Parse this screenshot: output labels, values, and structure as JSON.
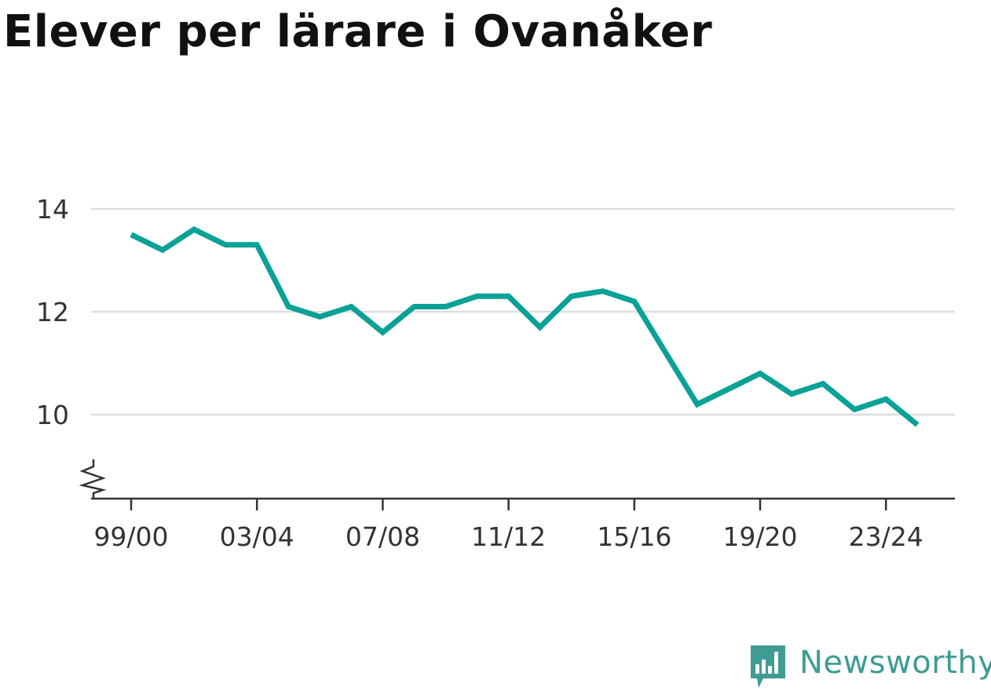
{
  "chart_data": {
    "type": "line",
    "title": "Elever per lärare i Ovanåker",
    "xlabel": "",
    "ylabel": "",
    "x": [
      "99/00",
      "00/01",
      "01/02",
      "02/03",
      "03/04",
      "04/05",
      "05/06",
      "06/07",
      "07/08",
      "08/09",
      "09/10",
      "10/11",
      "11/12",
      "12/13",
      "13/14",
      "14/15",
      "15/16",
      "16/17",
      "17/18",
      "18/19",
      "19/20",
      "20/21",
      "21/22",
      "22/23",
      "23/24",
      "24/25"
    ],
    "x_tick_labels": [
      "99/00",
      "03/04",
      "07/08",
      "11/12",
      "15/16",
      "19/20",
      "23/24"
    ],
    "series": [
      {
        "values": [
          13.5,
          13.2,
          13.6,
          13.3,
          13.3,
          12.1,
          11.9,
          12.1,
          11.6,
          12.1,
          12.1,
          12.3,
          12.3,
          11.7,
          12.3,
          12.4,
          12.2,
          11.2,
          10.2,
          10.5,
          10.8,
          10.4,
          10.6,
          10.1,
          10.3,
          9.8
        ]
      }
    ],
    "y_ticks": [
      10,
      12,
      14
    ],
    "y_tick_labels": [
      "10",
      "12",
      "14"
    ],
    "ylim": [
      8.35,
      14
    ],
    "y_axis_break": true,
    "grid": true,
    "legend": "none",
    "colors": {
      "line": "#0aa197",
      "grid": "#dddddd",
      "axis": "#333333"
    }
  },
  "brand": {
    "name": "Newsworthy",
    "color": "#3f9c93",
    "icon": "bar-chart-speech-bubble-icon"
  }
}
